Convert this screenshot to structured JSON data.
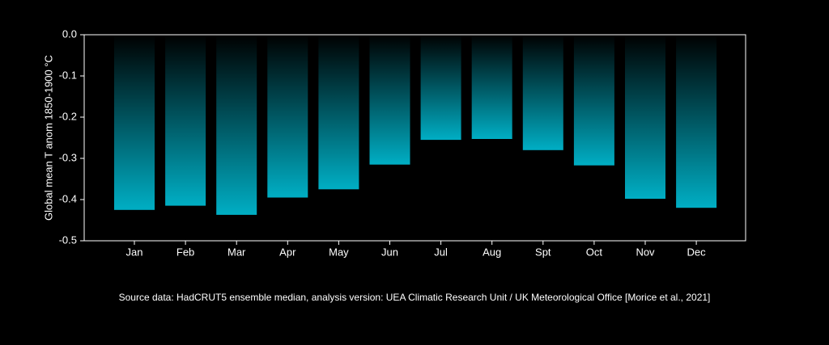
{
  "chart_data": {
    "type": "bar",
    "title": "",
    "xlabel": "",
    "ylabel": "Global mean T anom 1850-1900 °C",
    "categories": [
      "Jan",
      "Feb",
      "Mar",
      "Apr",
      "May",
      "Jun",
      "Jul",
      "Aug",
      "Spt",
      "Oct",
      "Nov",
      "Dec"
    ],
    "values": [
      -0.425,
      -0.415,
      -0.437,
      -0.395,
      -0.375,
      -0.315,
      -0.255,
      -0.253,
      -0.28,
      -0.317,
      -0.398,
      -0.42
    ],
    "ylim": [
      -0.5,
      0.0
    ],
    "yticks": [
      0.0,
      -0.1,
      -0.2,
      -0.3,
      -0.4,
      -0.5
    ],
    "ytick_labels": [
      "0.0",
      "-0.1",
      "-0.2",
      "-0.3",
      "-0.4",
      "-0.5"
    ],
    "grid": false,
    "legend": "none",
    "bar_gradient": [
      "#000000",
      "#00aec4"
    ],
    "background": "#000000",
    "axis_color": "#ffffff"
  },
  "source_note": "Source data: HadCRUT5 ensemble median, analysis version: UEA Climatic Research Unit / UK Meteorological Office [Morice et al., 2021]"
}
